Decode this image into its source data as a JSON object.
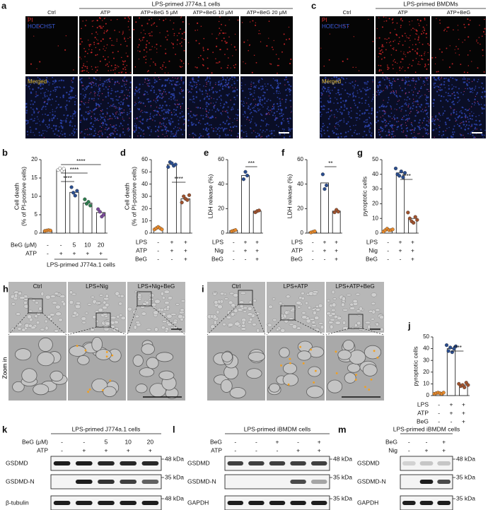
{
  "panel_a": {
    "label": "a",
    "group": "LPS-primed J774a.1 cells",
    "columns": [
      "Ctrl",
      "ATP",
      "ATP+BeG 5 μM",
      "ATP+BeG 10 μM",
      "ATP+BeG 20 μM"
    ],
    "channels": [
      "PI",
      "HOECHST"
    ],
    "merged": "Merged"
  },
  "panel_c": {
    "label": "c",
    "group": "LPS-primed BMDMs",
    "columns": [
      "Ctrl",
      "ATP",
      "ATP+BeG"
    ],
    "channels": [
      "PI",
      "HOECHST"
    ],
    "merged": "Merged"
  },
  "panel_h": {
    "label": "h",
    "columns": [
      "Ctrl",
      "LPS+Nig",
      "LPS+Nig+BeG"
    ],
    "zoom": "Zoom in"
  },
  "panel_i": {
    "label": "i",
    "columns": [
      "Ctrl",
      "LPS+ATP",
      "LPS+ATP+BeG"
    ],
    "zoom": "Zoom in"
  },
  "blots": [
    {
      "label": "k",
      "title": "LPS-primed J774a.1 cells",
      "conditions": [
        {
          "label": "BeG (μM)",
          "values": [
            "-",
            "-",
            "5",
            "10",
            "20"
          ]
        },
        {
          "label": "ATP",
          "values": [
            "-",
            "+",
            "+",
            "+",
            "+"
          ]
        }
      ],
      "bands": [
        "GSDMD",
        "GSDMD-N",
        "β-tubulin"
      ],
      "markers": [
        "48 kDa",
        "35 kDa",
        "48 kDa"
      ]
    },
    {
      "label": "l",
      "title": "LPS-primed iBMDM cells",
      "conditions": [
        {
          "label": "BeG",
          "values": [
            "-",
            "-",
            "+",
            "-",
            "+"
          ]
        },
        {
          "label": "ATP",
          "values": [
            "-",
            "-",
            "-",
            "+",
            "+"
          ]
        }
      ],
      "bands": [
        "GSDMD",
        "GSDMD-N",
        "GAPDH"
      ],
      "markers": [
        "48 kDa",
        "35 kDa",
        "35 kDa"
      ]
    },
    {
      "label": "m",
      "title": "LPS-primed iBMDM cells",
      "conditions": [
        {
          "label": "BeG",
          "values": [
            "-",
            "-",
            "+"
          ]
        },
        {
          "label": "Nig",
          "values": [
            "-",
            "+",
            "+"
          ]
        }
      ],
      "bands": [
        "GSDMD",
        "GSDMD-N",
        "GAPDH"
      ],
      "markers": [
        "48 kDa",
        "35 kDa",
        "35 kDa"
      ]
    }
  ],
  "chart_data": [
    {
      "type": "bar",
      "panel": "b",
      "ylabel": [
        "Cell death",
        "(% of PI-positive cells)"
      ],
      "ylim": [
        0,
        20
      ],
      "yticks": [
        0,
        5,
        10,
        15,
        20
      ],
      "values": [
        0.7,
        17.3,
        11.1,
        8.2,
        5.6
      ],
      "points": [
        [
          0.6,
          0.7,
          0.8,
          0.7
        ],
        [
          17.2,
          17.6,
          17.0,
          17.5
        ],
        [
          12.5,
          11.0,
          10.2,
          11.5
        ],
        [
          9.2,
          8.0,
          8.5,
          7.5
        ],
        [
          6.5,
          5.8,
          4.5,
          5.0
        ]
      ],
      "colors": [
        "#e8892a",
        "#ffffff",
        "#2a4d8f",
        "#2e7d4f",
        "#7b4a9b"
      ],
      "conditions": [
        {
          "label": "BeG (μM)",
          "values": [
            "-",
            "-",
            "5",
            "10",
            "20"
          ]
        },
        {
          "label": "ATP",
          "values": [
            "-",
            "+",
            "+",
            "+",
            "+"
          ]
        }
      ],
      "group": "LPS-primed J774a.1 cells",
      "significance": [
        "****",
        "****",
        "****"
      ]
    },
    {
      "type": "bar",
      "panel": "d",
      "ylabel": [
        "Cell death",
        "(% of PI-positive cells)"
      ],
      "ylim": [
        0,
        60
      ],
      "yticks": [
        0,
        10,
        20,
        30,
        40,
        50,
        60
      ],
      "values": [
        4,
        56,
        28
      ],
      "points": [
        [
          3,
          4,
          5,
          4,
          3
        ],
        [
          54,
          58,
          57,
          55,
          56
        ],
        [
          25,
          30,
          28,
          27,
          31
        ]
      ],
      "colors": [
        "#e8892a",
        "#2a4d8f",
        "#a0522d"
      ],
      "conditions": [
        {
          "label": "LPS",
          "values": [
            "-",
            "+",
            "+"
          ]
        },
        {
          "label": "ATP",
          "values": [
            "-",
            "+",
            "+"
          ]
        },
        {
          "label": "BeG",
          "values": [
            "-",
            "-",
            "+"
          ]
        }
      ],
      "significance": [
        "****"
      ]
    },
    {
      "type": "bar",
      "panel": "e",
      "ylabel": [
        "LDH release (%)"
      ],
      "ylim": [
        0,
        60
      ],
      "yticks": [
        0,
        20,
        40,
        60
      ],
      "values": [
        2,
        47,
        18
      ],
      "points": [
        [
          1.5,
          2,
          2.5
        ],
        [
          44,
          50,
          47
        ],
        [
          17,
          18,
          18.5
        ]
      ],
      "colors": [
        "#e8892a",
        "#2a4d8f",
        "#a0522d"
      ],
      "conditions": [
        {
          "label": "LPS",
          "values": [
            "-",
            "+",
            "+"
          ]
        },
        {
          "label": "Nig",
          "values": [
            "-",
            "+",
            "+"
          ]
        },
        {
          "label": "BeG",
          "values": [
            "-",
            "-",
            "+"
          ]
        }
      ],
      "significance": [
        "***"
      ]
    },
    {
      "type": "bar",
      "panel": "f",
      "ylabel": [
        "LDH release (%)"
      ],
      "ylim": [
        0,
        60
      ],
      "yticks": [
        0,
        20,
        40,
        60
      ],
      "values": [
        1,
        41,
        18
      ],
      "points": [
        [
          0.5,
          1,
          1.5
        ],
        [
          48,
          36,
          39
        ],
        [
          17,
          19,
          17.5
        ]
      ],
      "colors": [
        "#e8892a",
        "#2a4d8f",
        "#a0522d"
      ],
      "conditions": [
        {
          "label": "LPS",
          "values": [
            "-",
            "+",
            "+"
          ]
        },
        {
          "label": "ATP",
          "values": [
            "-",
            "+",
            "+"
          ]
        },
        {
          "label": "BeG",
          "values": [
            "-",
            "-",
            "+"
          ]
        }
      ],
      "significance": [
        "**"
      ]
    },
    {
      "type": "bar",
      "panel": "g",
      "ylabel": [
        "pyroptotic cells"
      ],
      "ylim": [
        0,
        50
      ],
      "yticks": [
        0,
        10,
        20,
        30,
        40,
        50
      ],
      "values": [
        2,
        41,
        10
      ],
      "points": [
        [
          1,
          2,
          3,
          2,
          2,
          2.5
        ],
        [
          44,
          40,
          39,
          42,
          38,
          41
        ],
        [
          14,
          10,
          8,
          7,
          11,
          9
        ]
      ],
      "colors": [
        "#e8892a",
        "#2a4d8f",
        "#a0522d"
      ],
      "conditions": [
        {
          "label": "LPS",
          "values": [
            "-",
            "+",
            "+"
          ]
        },
        {
          "label": "Nig",
          "values": [
            "-",
            "+",
            "+"
          ]
        },
        {
          "label": "BeG",
          "values": [
            "-",
            "-",
            "+"
          ]
        }
      ],
      "significance": [
        "****"
      ]
    },
    {
      "type": "bar",
      "panel": "j",
      "ylabel": [
        "pyroptotic cells"
      ],
      "ylim": [
        0,
        50
      ],
      "yticks": [
        0,
        10,
        20,
        30,
        40,
        50
      ],
      "values": [
        2,
        40,
        9
      ],
      "points": [
        [
          1.5,
          2,
          2.5,
          2,
          1.5,
          2.5
        ],
        [
          43,
          38,
          41,
          37,
          40,
          42
        ],
        [
          10,
          8,
          9,
          7,
          11,
          9
        ]
      ],
      "colors": [
        "#e8892a",
        "#2a4d8f",
        "#a0522d"
      ],
      "conditions": [
        {
          "label": "LPS",
          "values": [
            "-",
            "+",
            "+"
          ]
        },
        {
          "label": "ATP",
          "values": [
            "-",
            "+",
            "+"
          ]
        },
        {
          "label": "BeG",
          "values": [
            "-",
            "-",
            "+"
          ]
        }
      ],
      "significance": [
        "****"
      ]
    }
  ]
}
